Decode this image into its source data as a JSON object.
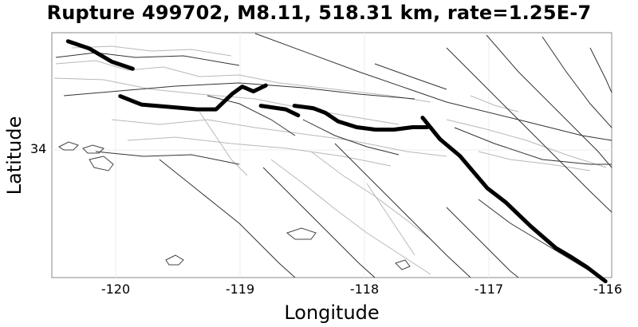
{
  "chart_data": {
    "type": "map",
    "title": "Rupture 499702, M8.11, 518.31 km, rate=1.25E-7",
    "xlabel": "Longitude",
    "ylabel": "Latitude",
    "xlim": [
      -120.5,
      -116
    ],
    "x_ticks": [
      "-120",
      "-119",
      "-118",
      "-117",
      "-116"
    ],
    "y_ticks": [
      "34"
    ],
    "grid": true,
    "rupture_traces": [
      [
        [
          -120.37,
          34.91
        ],
        [
          -120.2,
          34.85
        ],
        [
          -120.02,
          34.74
        ],
        [
          -119.85,
          34.68
        ]
      ],
      [
        [
          -119.95,
          34.45
        ],
        [
          -119.78,
          34.38
        ],
        [
          -119.55,
          34.36
        ],
        [
          -119.33,
          34.34
        ],
        [
          -119.18,
          34.34
        ],
        [
          -119.05,
          34.47
        ],
        [
          -118.97,
          34.53
        ],
        [
          -118.88,
          34.49
        ],
        [
          -118.78,
          34.54
        ]
      ],
      [
        [
          -118.82,
          34.37
        ],
        [
          -118.62,
          34.34
        ],
        [
          -118.52,
          34.29
        ]
      ],
      [
        [
          -118.55,
          34.37
        ],
        [
          -118.4,
          34.35
        ],
        [
          -118.3,
          34.31
        ],
        [
          -118.2,
          34.24
        ],
        [
          -118.05,
          34.19
        ],
        [
          -117.9,
          34.17
        ],
        [
          -117.75,
          34.17
        ],
        [
          -117.6,
          34.19
        ],
        [
          -117.48,
          34.19
        ]
      ],
      [
        [
          -117.52,
          34.27
        ],
        [
          -117.38,
          34.09
        ],
        [
          -117.22,
          33.95
        ],
        [
          -117.0,
          33.68
        ],
        [
          -116.85,
          33.56
        ],
        [
          -116.65,
          33.36
        ],
        [
          -116.45,
          33.18
        ],
        [
          -116.32,
          33.1
        ],
        [
          -116.2,
          33.02
        ],
        [
          -116.05,
          32.9
        ]
      ]
    ],
    "rupture_color": "#000000",
    "fault_color": "#333333",
    "subsection_color": "#b8b8b8"
  }
}
